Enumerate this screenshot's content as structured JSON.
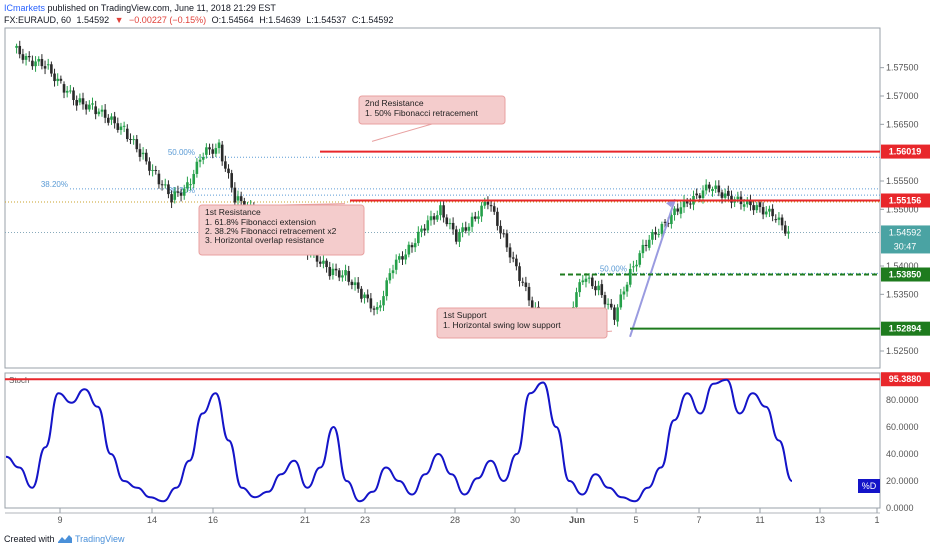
{
  "header": {
    "author": "ICmarkets",
    "published": "published on TradingView.com, June 11, 2018 21:29 EST",
    "symbol": "FX:EURAUD, 60",
    "last": "1.54592",
    "change": "−0.00227 (−0.15%)",
    "ohlc": {
      "o": "O:1.54564",
      "h": "H:1.54639",
      "l": "L:1.54537",
      "c": "C:1.54592"
    }
  },
  "footer": {
    "created": "Created with",
    "brand": "TradingView"
  },
  "colors": {
    "resistance": "#e8272b",
    "support": "#1e7b1e",
    "stoch_line": "#1414c8",
    "candle_up": "#25a04a",
    "candle_down": "#2a2a2a",
    "fib": "#5b9bd5",
    "note_bg": "#f4cccc",
    "price_tag": "#4aa3a3"
  },
  "chart_data": [
    {
      "type": "candlestick",
      "title": "EURAUD, 60",
      "ylim": [
        1.522,
        1.582
      ],
      "y_ticks": [
        "1.57500",
        "1.57000",
        "1.56500",
        "1.55500",
        "1.55000",
        "1.54000",
        "1.53500",
        "1.52500"
      ],
      "x_ticks": [
        "9",
        "14",
        "16",
        "21",
        "23",
        "28",
        "30",
        "Jun",
        "5",
        "7",
        "11",
        "13",
        "1"
      ],
      "series": [
        {
          "values": [
            1.5785,
            1.5762,
            1.5755,
            1.572,
            1.569,
            1.568,
            1.566,
            1.564,
            1.56,
            1.556,
            1.552,
            1.554,
            1.56,
            1.561,
            1.552,
            1.55,
            1.548,
            1.546,
            1.544,
            1.542,
            1.539,
            1.5385,
            1.535,
            1.532,
            1.54,
            1.543,
            1.547,
            1.55,
            1.545,
            1.548,
            1.5515,
            1.545,
            1.538,
            1.532,
            1.529,
            1.5305,
            1.538,
            1.536,
            1.531,
            1.539,
            1.544,
            1.547,
            1.55,
            1.552,
            1.554,
            1.5525,
            1.5512,
            1.5505,
            1.549,
            1.5459
          ]
        }
      ],
      "levels": [
        {
          "value": 1.56019,
          "label": "1.56019",
          "kind": "resistance"
        },
        {
          "value": 1.55156,
          "label": "1.55156",
          "kind": "resistance"
        },
        {
          "value": 1.5385,
          "label": "1.53850",
          "kind": "support"
        },
        {
          "value": 1.52894,
          "label": "1.52894",
          "kind": "support"
        }
      ],
      "current_price": {
        "label": "1.54592",
        "timer": "30:47"
      },
      "fib_labels": [
        "50.00%",
        "38.20%",
        "38.20%",
        "50.00%"
      ],
      "annotations": [
        {
          "title": "2nd Resistance",
          "lines": [
            "1. 50% Fibonacci retracement"
          ]
        },
        {
          "title": "1st Resistance",
          "lines": [
            "1. 61.8% Fibonacci extension",
            "2. 38.2% Fibonacci retracement x2",
            "3. Horizontal overlap resistance"
          ]
        },
        {
          "title": "1st Support",
          "lines": [
            "1. Horizontal swing low support"
          ]
        }
      ]
    },
    {
      "type": "line",
      "title": "Stoch",
      "ylim": [
        0,
        100
      ],
      "y_ticks": [
        "80.0000",
        "60.0000",
        "40.0000",
        "20.0000",
        "0.0000"
      ],
      "level": {
        "value": 95.388,
        "label": "95.3880"
      },
      "legend_badge": "%D",
      "series": [
        {
          "name": "%D",
          "values": [
            38,
            30,
            15,
            45,
            85,
            78,
            88,
            75,
            40,
            20,
            15,
            8,
            5,
            15,
            35,
            70,
            85,
            50,
            15,
            8,
            12,
            25,
            35,
            15,
            30,
            60,
            20,
            5,
            12,
            30,
            20,
            10,
            25,
            40,
            25,
            10,
            22,
            35,
            20,
            40,
            85,
            93,
            60,
            20,
            10,
            25,
            15,
            8,
            5,
            15,
            30,
            65,
            85,
            70,
            92,
            95,
            70,
            85,
            75,
            50,
            20
          ]
        }
      ]
    }
  ]
}
